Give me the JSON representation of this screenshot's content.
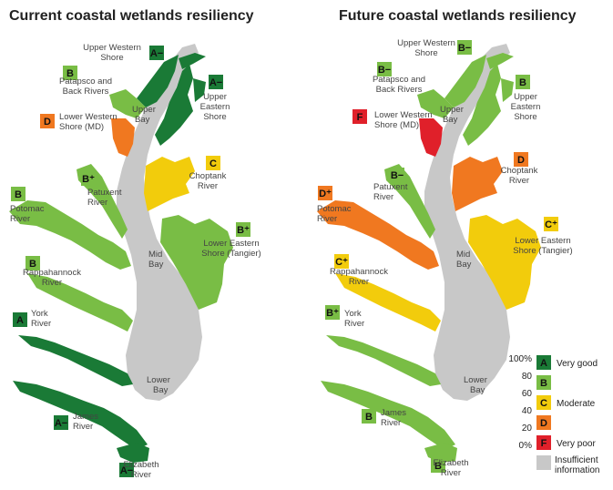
{
  "maps": [
    {
      "title": "Current coastal wetlands resiliency",
      "regions": [
        {
          "name": "Upper Western Shore",
          "grade": "A−",
          "color": "#1a7a36"
        },
        {
          "name": "Patapsco and Back Rivers",
          "grade": "B",
          "color": "#79bd45"
        },
        {
          "name": "Upper Eastern Shore",
          "grade": "A−",
          "color": "#1a7a36"
        },
        {
          "name": "Upper Bay",
          "grade": "",
          "color": ""
        },
        {
          "name": "Lower Western Shore (MD)",
          "grade": "D",
          "color": "#f07820"
        },
        {
          "name": "Choptank River",
          "grade": "C",
          "color": "#f2cc0c"
        },
        {
          "name": "Patuxent River",
          "grade": "B⁺",
          "color": "#79bd45"
        },
        {
          "name": "Potomac River",
          "grade": "B",
          "color": "#79bd45"
        },
        {
          "name": "Lower Eastern Shore (Tangier)",
          "grade": "B⁺",
          "color": "#79bd45"
        },
        {
          "name": "Mid Bay",
          "grade": "",
          "color": ""
        },
        {
          "name": "Rappahannock River",
          "grade": "B",
          "color": "#79bd45"
        },
        {
          "name": "York River",
          "grade": "A",
          "color": "#1a7a36"
        },
        {
          "name": "Lower Bay",
          "grade": "",
          "color": ""
        },
        {
          "name": "James River",
          "grade": "A−",
          "color": "#1a7a36"
        },
        {
          "name": "Elizabeth River",
          "grade": "A−",
          "color": "#1a7a36"
        }
      ]
    },
    {
      "title": "Future coastal wetlands resiliency",
      "regions": [
        {
          "name": "Upper Western Shore",
          "grade": "B−",
          "color": "#79bd45"
        },
        {
          "name": "Patapsco and Back Rivers",
          "grade": "B−",
          "color": "#79bd45"
        },
        {
          "name": "Upper Eastern Shore",
          "grade": "B",
          "color": "#79bd45"
        },
        {
          "name": "Upper Bay",
          "grade": "",
          "color": ""
        },
        {
          "name": "Lower Western Shore (MD)",
          "grade": "F",
          "color": "#e0202a"
        },
        {
          "name": "Choptank River",
          "grade": "D",
          "color": "#f07820"
        },
        {
          "name": "Patuxent River",
          "grade": "B−",
          "color": "#79bd45"
        },
        {
          "name": "Potomac River",
          "grade": "D⁺",
          "color": "#f07820"
        },
        {
          "name": "Lower Eastern Shore (Tangier)",
          "grade": "C⁺",
          "color": "#f2cc0c"
        },
        {
          "name": "Mid Bay",
          "grade": "",
          "color": ""
        },
        {
          "name": "Rappahannock River",
          "grade": "C⁺",
          "color": "#f2cc0c"
        },
        {
          "name": "York River",
          "grade": "B⁺",
          "color": "#79bd45"
        },
        {
          "name": "Lower Bay",
          "grade": "",
          "color": ""
        },
        {
          "name": "James River",
          "grade": "B",
          "color": "#79bd45"
        },
        {
          "name": "Elizabeth River",
          "grade": "B",
          "color": "#79bd45"
        }
      ]
    }
  ],
  "legend": {
    "scale_ticks": [
      "100%",
      "80",
      "60",
      "40",
      "20",
      "0%"
    ],
    "items": [
      {
        "grade": "A",
        "label": "Very good",
        "color": "#1a7a36"
      },
      {
        "grade": "B",
        "label": "",
        "color": "#79bd45"
      },
      {
        "grade": "C",
        "label": "Moderate",
        "color": "#f2cc0c"
      },
      {
        "grade": "D",
        "label": "",
        "color": "#f07820"
      },
      {
        "grade": "F",
        "label": "Very poor",
        "color": "#e0202a"
      }
    ],
    "insufficient": {
      "label_line1": "Insufficient",
      "label_line2": "information",
      "color": "#c8c8c8"
    }
  },
  "water_color": "#c8c8c8"
}
